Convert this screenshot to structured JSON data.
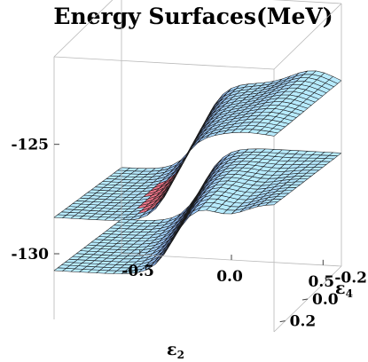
{
  "chart_data": {
    "type": "surface",
    "title": "Energy Surfaces(MeV)",
    "xlabel": "ε",
    "xlabel_sub": "2",
    "ylabel": "ε",
    "ylabel_sub": "4",
    "zlabel": "",
    "xlim": [
      -0.6,
      0.6
    ],
    "ylim": [
      -0.3,
      0.3
    ],
    "zlim": [
      -133,
      -121
    ],
    "x_ticks": [
      "-0.5",
      "0.0",
      "0.5"
    ],
    "x_tick_values": [
      -0.5,
      0.0,
      0.5
    ],
    "y_ticks": [
      "0.2",
      "0.0",
      "-0.2"
    ],
    "y_tick_values": [
      0.2,
      0.0,
      -0.2
    ],
    "z_ticks": [
      "-125",
      "-130"
    ],
    "z_tick_values": [
      -125,
      -130
    ],
    "grid": false,
    "colors": {
      "low": "#b8ecff",
      "mid": "#5a7bff",
      "dark": "#2a1fb0",
      "crossing": "#d9405a"
    },
    "series": [
      {
        "surface": "upper",
        "note_points": [
          {
            "x": -0.6,
            "y": 0.0,
            "z": -126.9
          },
          {
            "x": -0.2,
            "y": 0.0,
            "z": -126.3
          },
          {
            "x": 0.0,
            "y": 0.0,
            "z": -125.2
          },
          {
            "x": 0.3,
            "y": 0.0,
            "z": -123.5
          },
          {
            "x": 0.6,
            "y": 0.0,
            "z": -122.5
          }
        ]
      },
      {
        "surface": "lower",
        "note_points": [
          {
            "x": -0.6,
            "y": 0.0,
            "z": -130.5
          },
          {
            "x": -0.2,
            "y": 0.0,
            "z": -129.5
          },
          {
            "x": 0.0,
            "y": 0.0,
            "z": -127.5
          },
          {
            "x": 0.3,
            "y": 0.0,
            "z": -127.3
          },
          {
            "x": 0.6,
            "y": 0.0,
            "z": -127.3
          }
        ]
      }
    ]
  }
}
